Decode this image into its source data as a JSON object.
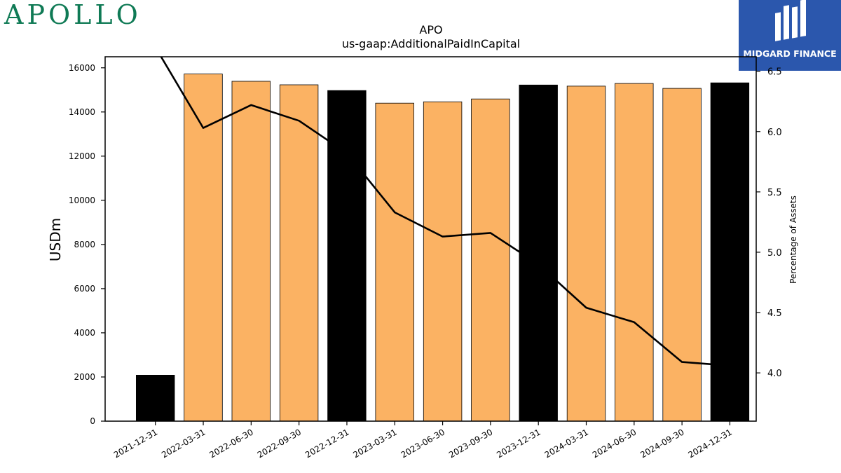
{
  "header": {
    "left_logo": "APOLLO",
    "right_logo": "MIDGARD FINANCE"
  },
  "chart_data": {
    "type": "bar",
    "title": "APO",
    "subtitle": "us-gaap:AdditionalPaidInCapital",
    "ylabel": "USDm",
    "y2label": "Percentage of Assets",
    "ylim": [
      0,
      16500
    ],
    "y2lim": [
      3.6,
      6.62
    ],
    "yticks": [
      0,
      2000,
      4000,
      6000,
      8000,
      10000,
      12000,
      14000,
      16000
    ],
    "y2ticks": [
      4.0,
      4.5,
      5.0,
      5.5,
      6.0,
      6.5
    ],
    "categories": [
      "2021-12-31",
      "2022-03-31",
      "2022-06-30",
      "2022-09-30",
      "2022-12-31",
      "2023-03-31",
      "2023-06-30",
      "2023-09-30",
      "2023-12-31",
      "2024-03-31",
      "2024-06-30",
      "2024-09-30",
      "2024-12-31"
    ],
    "values": [
      2080,
      15720,
      15390,
      15230,
      14970,
      14400,
      14460,
      14590,
      15220,
      15170,
      15290,
      15070,
      15320
    ],
    "bar_colors": [
      "#000000",
      "#fbb263",
      "#fbb263",
      "#fbb263",
      "#000000",
      "#fbb263",
      "#fbb263",
      "#fbb263",
      "#000000",
      "#fbb263",
      "#fbb263",
      "#fbb263",
      "#000000"
    ],
    "line_series": {
      "values": [
        6.7,
        6.03,
        6.22,
        6.09,
        5.82,
        5.33,
        5.13,
        5.16,
        4.9,
        4.54,
        4.42,
        4.09,
        4.06
      ],
      "color": "#000000"
    },
    "grid": false
  }
}
